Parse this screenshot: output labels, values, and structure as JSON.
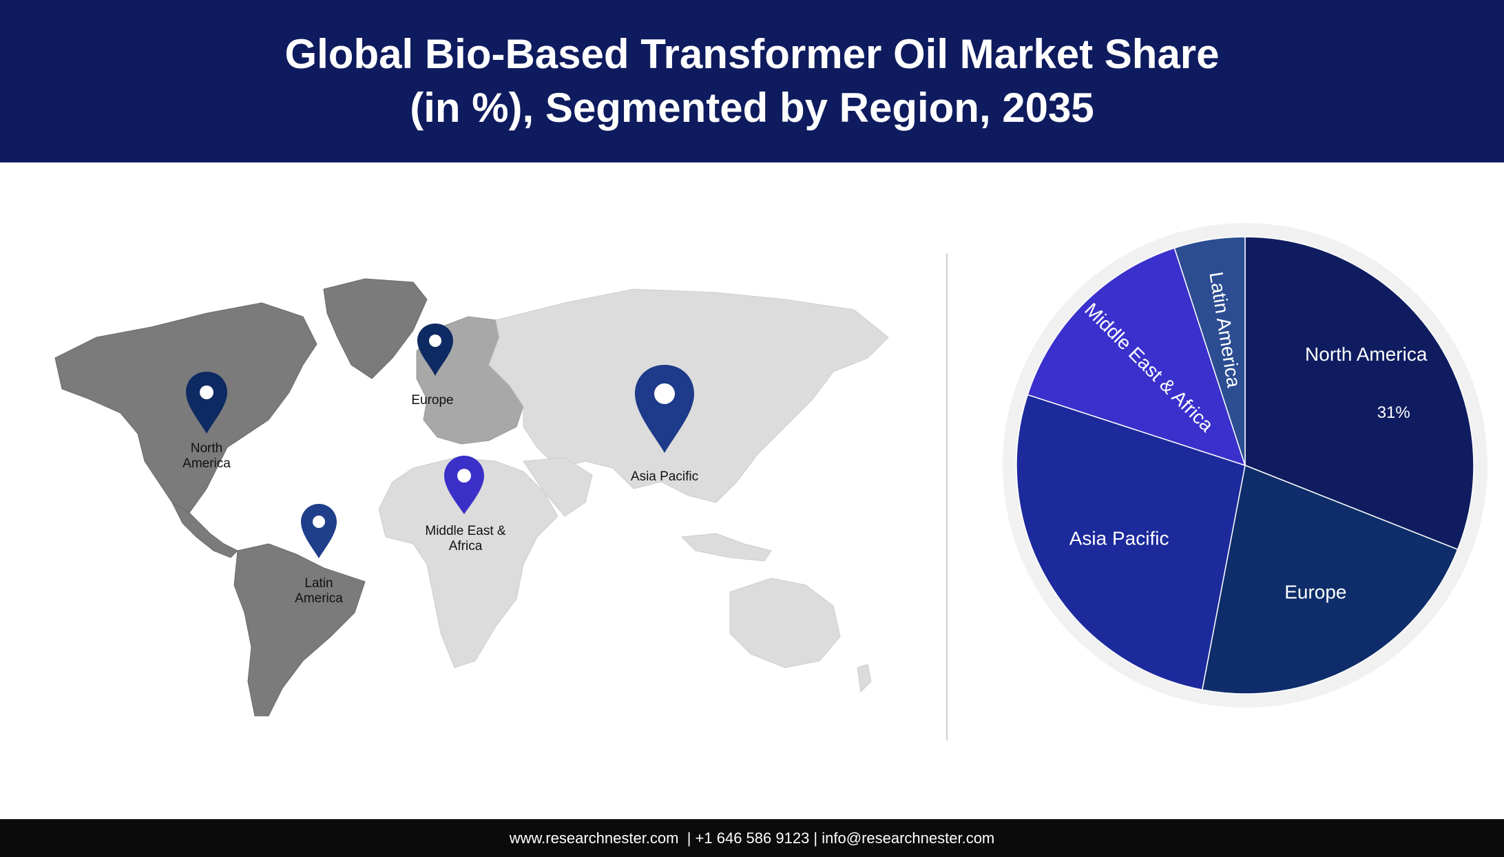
{
  "header": {
    "title_line1": "Global Bio-Based Transformer Oil Market Share",
    "title_line2": "(in %), Segmented by Region, 2035"
  },
  "map": {
    "pins": [
      {
        "label_lines": [
          "North",
          "America"
        ],
        "color": "#0e2a63"
      },
      {
        "label_lines": [
          "Europe"
        ],
        "color": "#0e2a63"
      },
      {
        "label_lines": [
          "Asia Pacific"
        ],
        "color": "#1e3a8a"
      },
      {
        "label_lines": [
          "Middle East &",
          "Africa"
        ],
        "color": "#3a30c8"
      },
      {
        "label_lines": [
          "Latin",
          "America"
        ],
        "color": "#1f3f8a"
      }
    ]
  },
  "chart_data": {
    "type": "pie",
    "title": "Global Bio-Based Transformer Oil Market Share (in %), Segmented by Region, 2035",
    "slices": [
      {
        "label": "North America",
        "value": 31,
        "value_label": "31%",
        "color": "#0f1d60"
      },
      {
        "label": "Europe",
        "value": 22,
        "color": "#0f2d6a"
      },
      {
        "label": "Asia Pacific",
        "value": 27,
        "color": "#1c2a9c"
      },
      {
        "label": "Middle East & Africa",
        "value": 15,
        "color": "#3a30cc"
      },
      {
        "label": "Latin America",
        "value": 5,
        "color": "#2c4d92"
      }
    ]
  },
  "footer": {
    "text": "www.researchnester.com  | +1 646 586 9123 | info@researchnester.com"
  }
}
